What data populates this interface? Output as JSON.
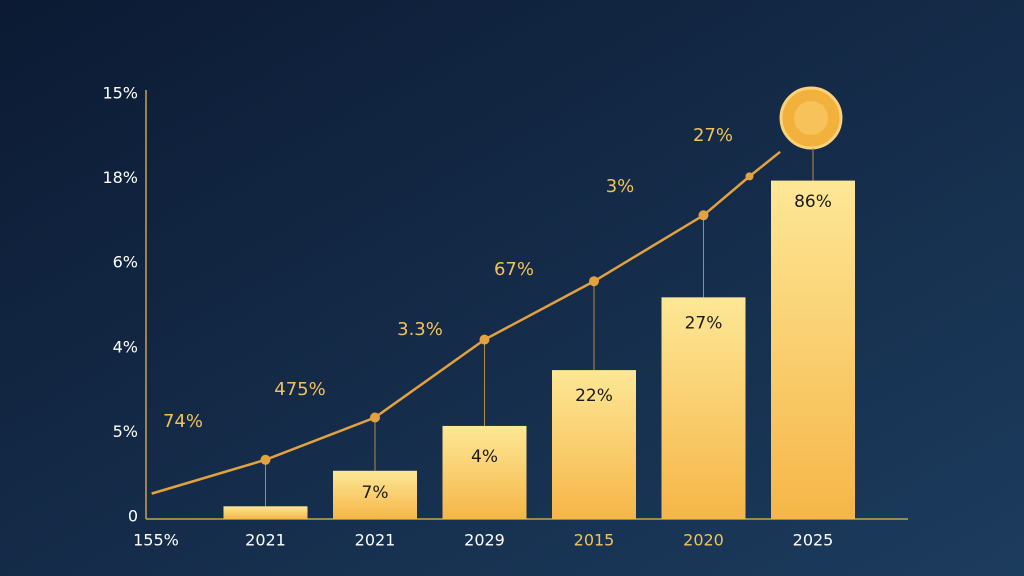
{
  "chart_data": {
    "type": "bar",
    "categories": [
      "155%",
      "2021",
      "2021",
      "2029",
      "2015",
      "2020",
      "2025"
    ],
    "category_colors": [
      "#ffffff",
      "#ffffff",
      "#ffffff",
      "#ffffff",
      "#f2c25a",
      "#f2c25a",
      "#ffffff"
    ],
    "values": [
      null,
      0.15,
      0.57,
      1.1,
      1.76,
      2.62,
      4.0
    ],
    "bar_labels": [
      null,
      null,
      "7%",
      "4%",
      "22%",
      "27%",
      "86%"
    ],
    "y_axis_labels": [
      "0",
      "5%",
      "4%",
      "6%",
      "18%",
      "15%"
    ],
    "ylim": [
      0,
      5
    ],
    "line": {
      "x": [
        -0.04,
        1,
        2,
        3,
        4,
        5,
        5.42,
        5.7
      ],
      "values": [
        0.3,
        0.7,
        1.2,
        2.12,
        2.81,
        3.59,
        4.05,
        4.34
      ],
      "color": "#e3a23f"
    },
    "line_labels": [
      "74%",
      "475%",
      "3.3%",
      "67%",
      "3%",
      "27%"
    ]
  }
}
